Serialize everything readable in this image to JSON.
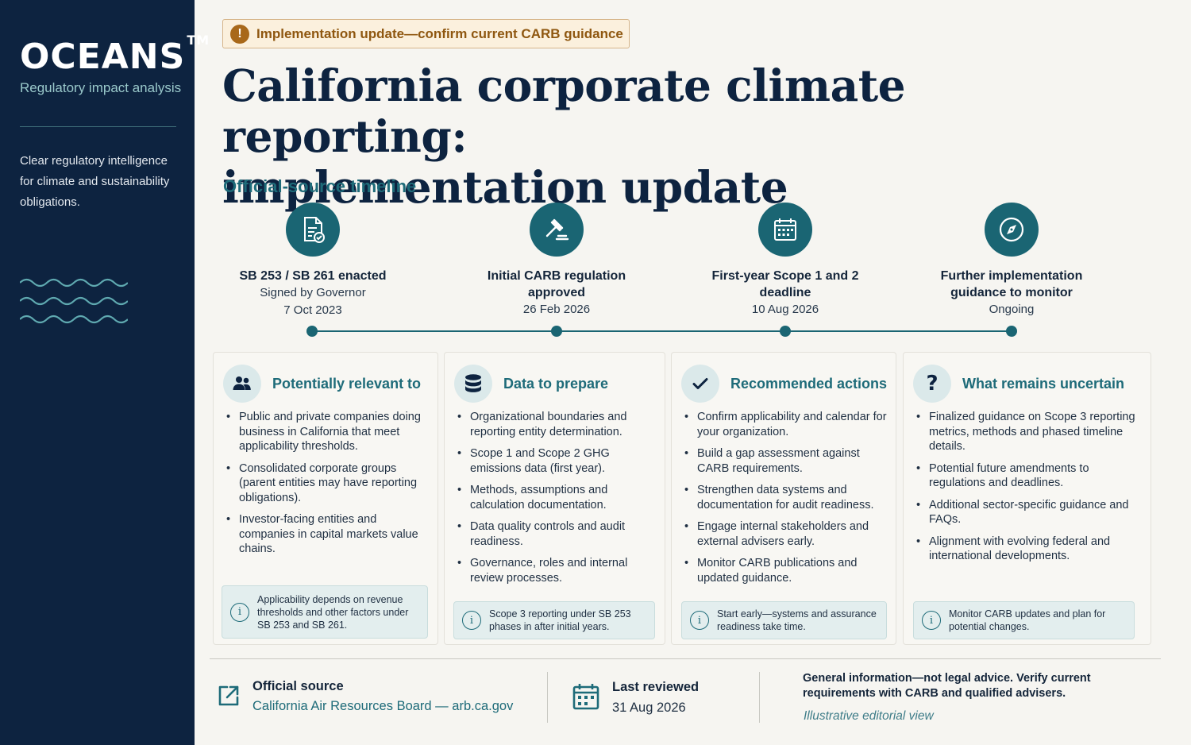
{
  "sidebar": {
    "brand": "OCEANS",
    "trademark": "TM",
    "subtitle": "Regulatory impact analysis",
    "description": "Clear regulatory intelligence for climate and sustainability obligations."
  },
  "badge": {
    "text": "Implementation update—confirm current CARB guidance",
    "icon": "exclamation-icon"
  },
  "title": {
    "line1": "California corporate climate reporting:",
    "line2": "implementation update"
  },
  "timeline": {
    "heading": "Official-source timeline",
    "milestones": [
      {
        "icon": "document-check-icon",
        "title": "SB 253 / SB 261 enacted",
        "sub": "Signed by Governor",
        "date": "7 Oct 2023"
      },
      {
        "icon": "gavel-icon",
        "title": "Initial CARB regulation approved",
        "sub": "",
        "date": "26 Feb 2026"
      },
      {
        "icon": "calendar-icon",
        "title": "First-year Scope 1 and 2 deadline",
        "sub": "",
        "date": "10 Aug 2026"
      },
      {
        "icon": "compass-icon",
        "title": "Further implementation guidance to monitor",
        "sub": "",
        "date": "Ongoing"
      }
    ]
  },
  "cards": [
    {
      "icon": "people-icon",
      "title": "Potentially relevant to",
      "items": [
        "Public and private companies doing business in California that meet applicability thresholds.",
        "Consolidated corporate groups (parent entities may have reporting obligations).",
        "Investor-facing entities and companies in capital markets value chains."
      ],
      "note": "Applicability depends on revenue thresholds and other factors under SB 253 and SB 261."
    },
    {
      "icon": "database-icon",
      "title": "Data to prepare",
      "items": [
        "Organizational boundaries and reporting entity determination.",
        "Scope 1 and Scope 2 GHG emissions data (first year).",
        "Methods, assumptions and calculation documentation.",
        "Data quality controls and audit readiness.",
        "Governance, roles and internal review processes."
      ],
      "note": "Scope 3 reporting under SB 253 phases in after initial years."
    },
    {
      "icon": "checkmark-icon",
      "title": "Recommended actions",
      "items": [
        "Confirm applicability and calendar for your organization.",
        "Build a gap assessment against CARB requirements.",
        "Strengthen data systems and documentation for audit readiness.",
        "Engage internal stakeholders and external advisers early.",
        "Monitor CARB publications and updated guidance."
      ],
      "note": "Start early—systems and assurance readiness take time."
    },
    {
      "icon": "question-icon",
      "title": "What remains uncertain",
      "items": [
        "Finalized guidance on Scope 3 reporting metrics, methods and phased timeline details.",
        "Potential future amendments to regulations and deadlines.",
        "Additional sector-specific guidance and FAQs.",
        "Alignment with evolving federal and international developments."
      ],
      "note": "Monitor CARB updates and plan for potential changes."
    }
  ],
  "footer": {
    "source_label": "Official source",
    "source_value": "California Air Resources Board — arb.ca.gov",
    "reviewed_label": "Last reviewed",
    "reviewed_date": "31 Aug 2026",
    "disclaimer": "General information—not legal advice. Verify current requirements with CARB and qualified advisers.",
    "editorial": "Illustrative editorial view"
  },
  "colors": {
    "navy": "#0d2340",
    "teal": "#1a6573",
    "amber": "#a8681a"
  }
}
